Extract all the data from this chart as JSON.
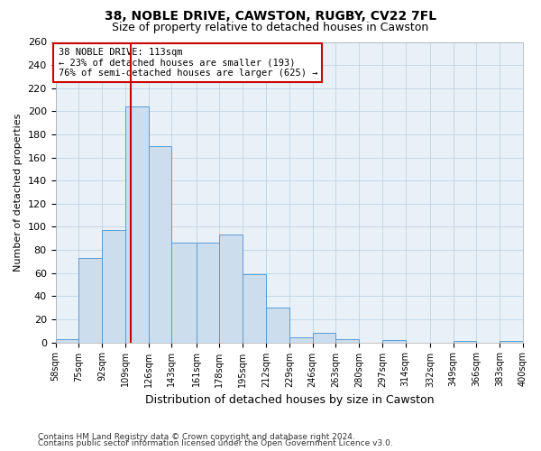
{
  "title1": "38, NOBLE DRIVE, CAWSTON, RUGBY, CV22 7FL",
  "title2": "Size of property relative to detached houses in Cawston",
  "xlabel": "Distribution of detached houses by size in Cawston",
  "ylabel": "Number of detached properties",
  "footnote1": "Contains HM Land Registry data © Crown copyright and database right 2024.",
  "footnote2": "Contains public sector information licensed under the Open Government Licence v3.0.",
  "annotation_line1": "38 NOBLE DRIVE: 113sqm",
  "annotation_line2": "← 23% of detached houses are smaller (193)",
  "annotation_line3": "76% of semi-detached houses are larger (625) →",
  "property_line_x": 113,
  "bar_edges": [
    58,
    75,
    92,
    109,
    126,
    143,
    161,
    178,
    195,
    212,
    229,
    246,
    263,
    280,
    297,
    314,
    332,
    349,
    366,
    383,
    400
  ],
  "bar_heights": [
    3,
    73,
    97,
    204,
    170,
    86,
    86,
    93,
    59,
    30,
    4,
    8,
    3,
    0,
    2,
    0,
    0,
    1,
    0,
    1
  ],
  "bar_color": "#ccdded",
  "bar_edge_color": "#5b9bd5",
  "vline_color": "#cc0000",
  "box_edge_color": "#cc0000",
  "background_color": "#ffffff",
  "plot_bg_color": "#e8f0f8",
  "grid_color": "#b8cfe0",
  "ylim": [
    0,
    260
  ],
  "yticks": [
    0,
    20,
    40,
    60,
    80,
    100,
    120,
    140,
    160,
    180,
    200,
    220,
    240,
    260
  ]
}
